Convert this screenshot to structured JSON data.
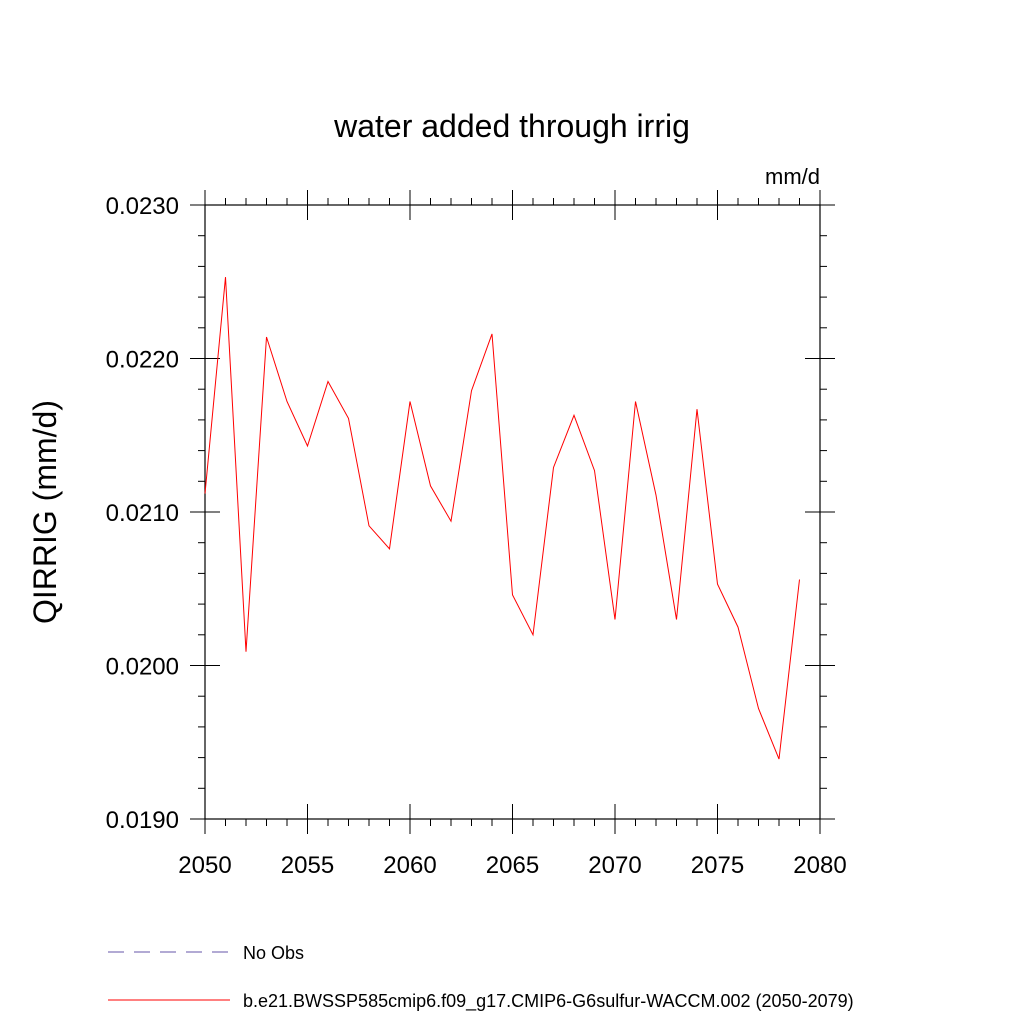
{
  "chart_data": {
    "type": "line",
    "title": "water added through irrig",
    "units": "mm/d",
    "xlabel": "",
    "ylabel": "QIRRIG  (mm/d)",
    "xlim": [
      2050,
      2080
    ],
    "ylim": [
      0.019,
      0.023
    ],
    "x_ticks": [
      2050,
      2055,
      2060,
      2065,
      2070,
      2075,
      2080
    ],
    "x_tick_labels": [
      "2050",
      "2055",
      "2060",
      "2065",
      "2070",
      "2075",
      "2080"
    ],
    "y_ticks": [
      0.019,
      0.02,
      0.021,
      0.022,
      0.023
    ],
    "y_tick_labels": [
      "0.0190",
      "0.0200",
      "0.0210",
      "0.0220",
      "0.0230"
    ],
    "grid": false,
    "legend_position": "bottom",
    "legend": [
      {
        "label": "No Obs",
        "color": "#6655aa",
        "style": "dashed"
      },
      {
        "label": "b.e21.BWSSP585cmip6.f09_g17.CMIP6-G6sulfur-WACCM.002 (2050-2079)",
        "color": "#ff0000",
        "style": "solid"
      }
    ],
    "series": [
      {
        "color": "#ff0000",
        "x": [
          2050,
          2051,
          2052,
          2053,
          2054,
          2055,
          2056,
          2057,
          2058,
          2059,
          2060,
          2061,
          2062,
          2063,
          2064,
          2065,
          2066,
          2067,
          2068,
          2069,
          2070,
          2071,
          2072,
          2073,
          2074,
          2075,
          2076,
          2077,
          2078,
          2079
        ],
        "values": [
          0.02112,
          0.02253,
          0.02009,
          0.02214,
          0.02172,
          0.02143,
          0.02185,
          0.02161,
          0.02091,
          0.02076,
          0.02172,
          0.02117,
          0.02094,
          0.02179,
          0.02216,
          0.02046,
          0.0202,
          0.02129,
          0.02163,
          0.02127,
          0.0203,
          0.02172,
          0.02111,
          0.0203,
          0.02167,
          0.02053,
          0.02025,
          0.01972,
          0.01939,
          0.02056
        ]
      }
    ]
  }
}
